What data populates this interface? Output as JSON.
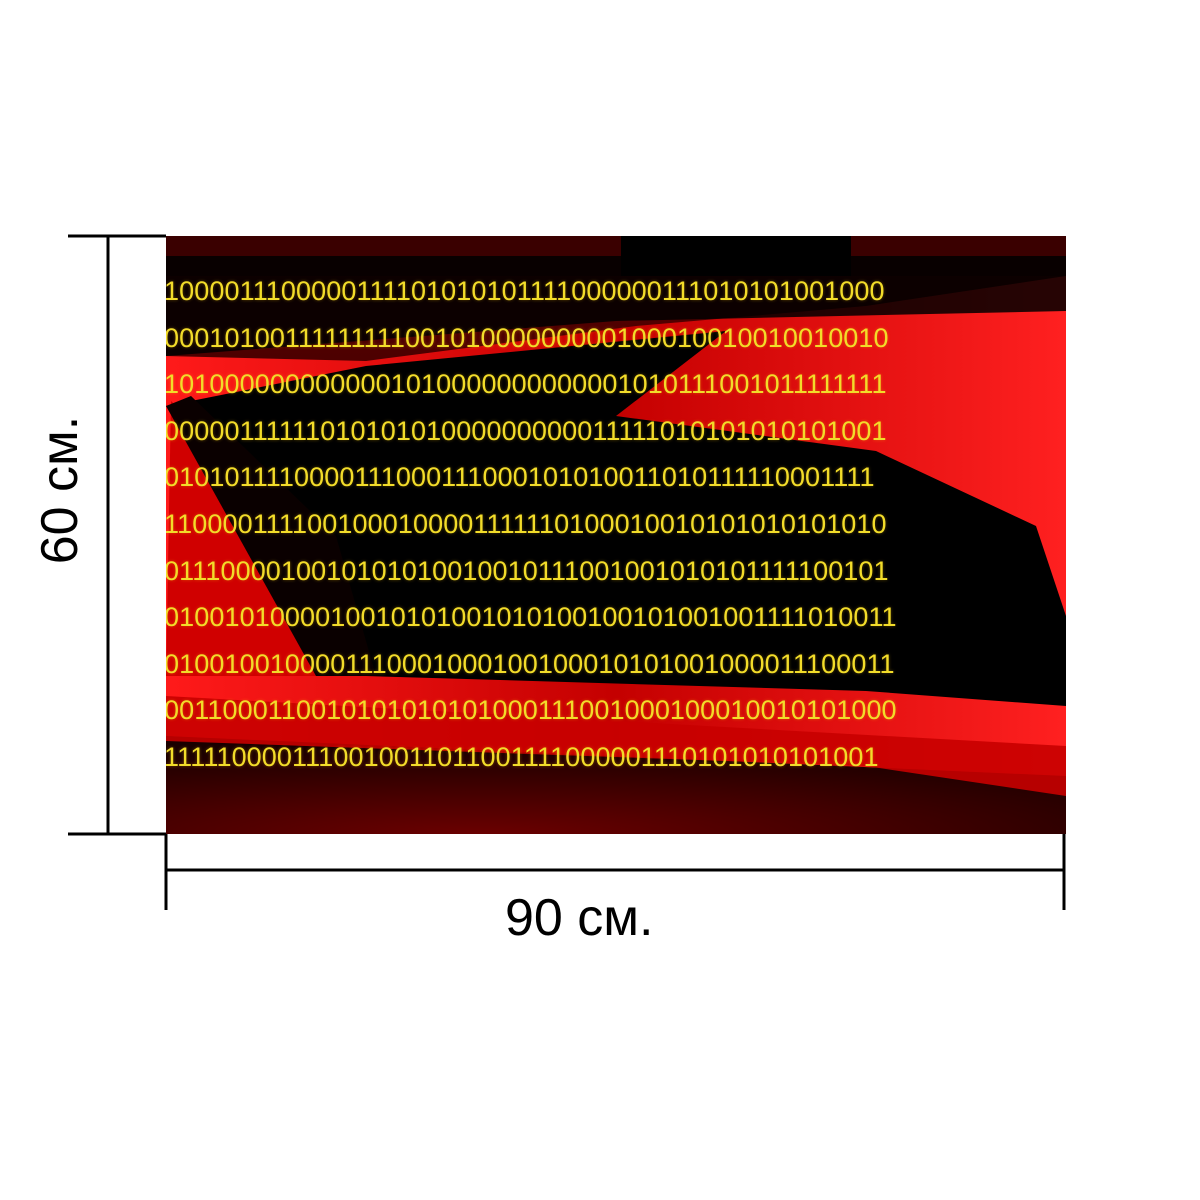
{
  "dimensions": {
    "width_label": "90 см.",
    "height_label": "60 см."
  },
  "image": {
    "binary_rows": [
      "1000011100000111101010101111000000111010101001000",
      "0001010011111111100101000000000100010010010010010",
      "1010000000000001010000000000001010111001011111111",
      "0000011111101010101000000000011111010101010101001",
      "0101011110000111000111000101010011010111110001111",
      "1100001111001000100001111110100010010101010101010",
      "0111000010010101010010010111001001010101111100101",
      "0100101000010010101001010100100101001001111010011",
      "0100100100001110001000100100010101001000011100011",
      "0011000110010101010101000111001000100010010101000",
      "1111100001110010011011001111000001110101010101001"
    ],
    "colors": {
      "digits": "#f2dc2a",
      "red": "#e00000",
      "black": "#000000",
      "dark_red": "#3a0000"
    }
  }
}
